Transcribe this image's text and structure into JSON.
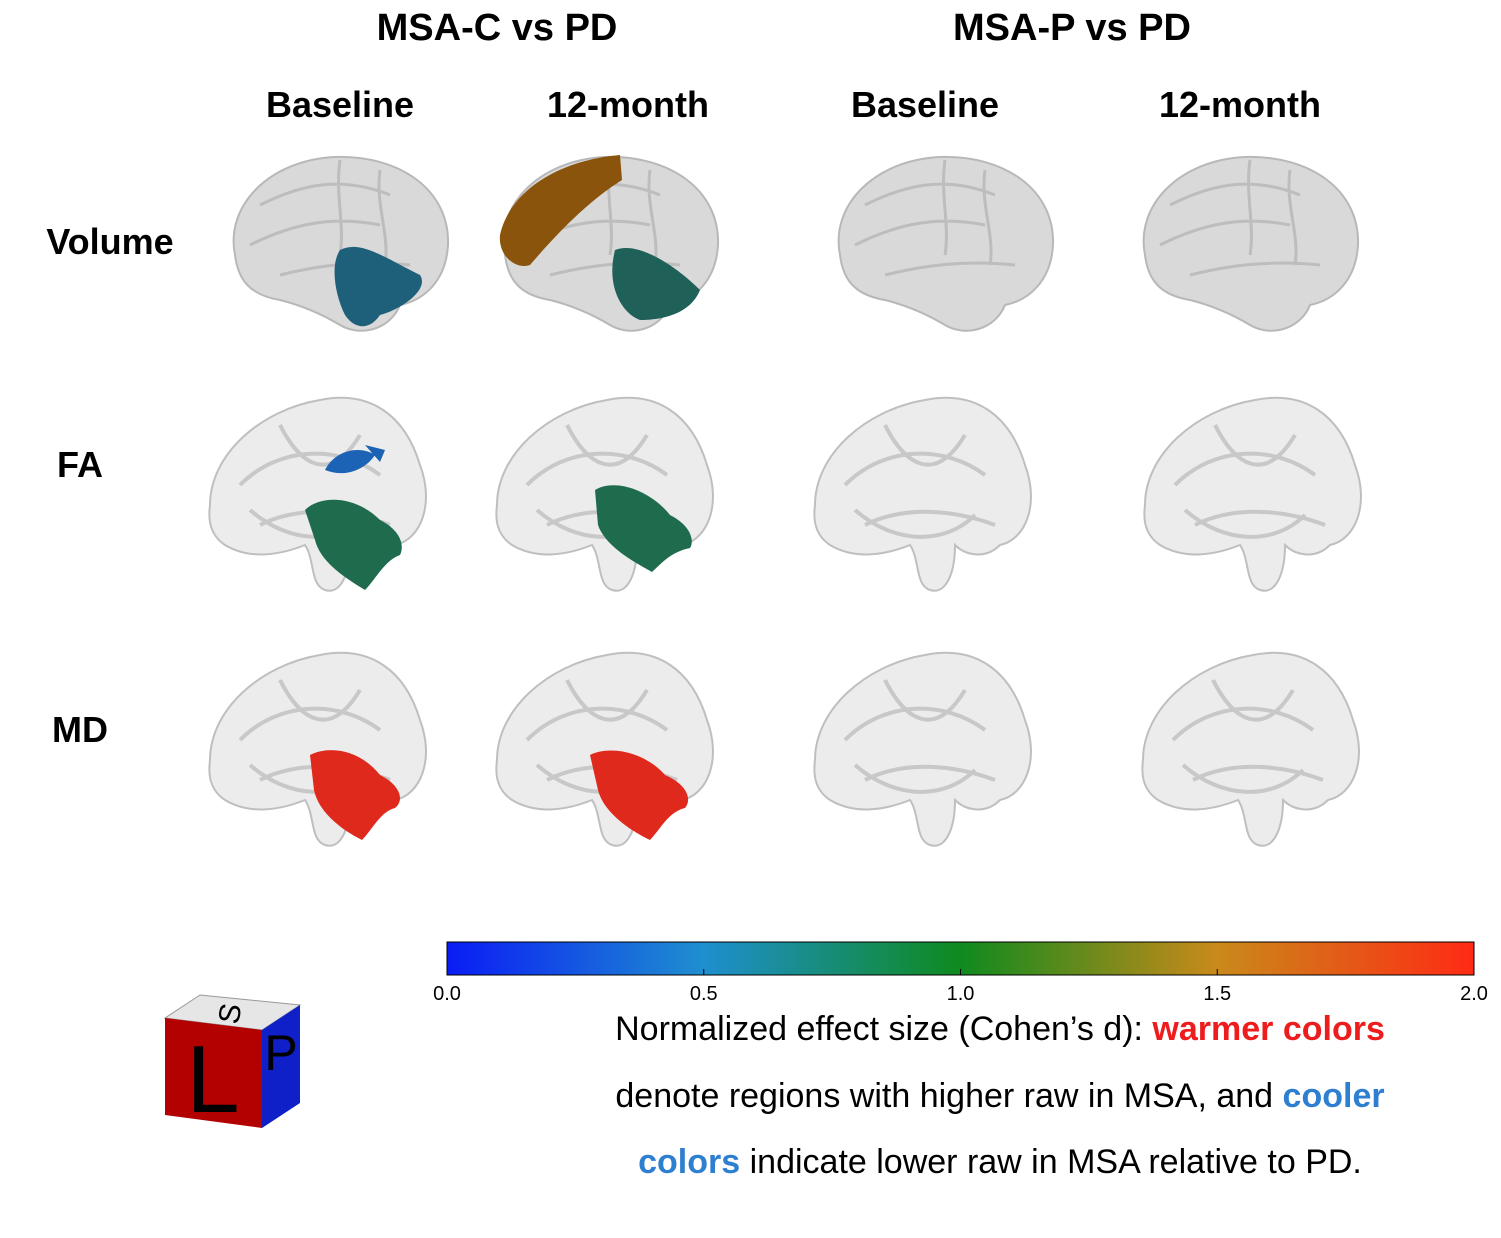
{
  "group_titles": [
    "MSA-C vs PD",
    "MSA-P vs PD"
  ],
  "column_headers": [
    "Baseline",
    "12-month",
    "Baseline",
    "12-month"
  ],
  "row_labels": [
    "Volume",
    "FA",
    "MD"
  ],
  "colorbar": {
    "range": [
      0,
      2
    ],
    "colors": [
      "#0a1cf5",
      "#1f8fcf",
      "#0f8a1e",
      "#c98a1a",
      "#ff2a14"
    ],
    "ticks": [
      {
        "value": 0,
        "label": "0.0"
      },
      {
        "value": 0.5,
        "label": "0.5"
      },
      {
        "value": 1,
        "label": "1.0"
      },
      {
        "value": 1.5,
        "label": "1.5"
      },
      {
        "value": 2,
        "label": "2.0"
      }
    ]
  },
  "caption": {
    "lines": [
      [
        {
          "text": "Normalized effect size (Cohen’s d): ",
          "color": "#000000"
        },
        {
          "text": "warmer colors",
          "color": "#ee1c1c"
        }
      ],
      [
        {
          "text": "denote regions with higher raw in MSA, and ",
          "color": "#000000"
        },
        {
          "text": "cooler",
          "color": "#2f7fd0"
        }
      ],
      [
        {
          "text": "colors",
          "color": "#2f7fd0"
        },
        {
          "text": " indicate lower raw in MSA relative to PD.",
          "color": "#000000"
        }
      ]
    ]
  },
  "orientation_cube": {
    "front": "L",
    "side": "P",
    "top": "S"
  }
}
